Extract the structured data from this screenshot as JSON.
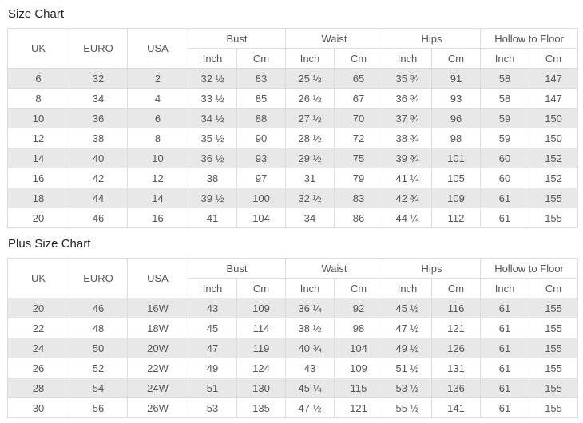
{
  "colors": {
    "background": "#ffffff",
    "shaded_row": "#e8e8e8",
    "border": "#dcdcdc",
    "cell_text": "#555555",
    "title_text": "#222222"
  },
  "tables": [
    {
      "title": "Size Chart",
      "span_headers": [
        "UK",
        "EURO",
        "USA"
      ],
      "group_headers": [
        "Bust",
        "Waist",
        "Hips",
        "Hollow to Floor"
      ],
      "sub_headers": [
        "Inch",
        "Cm"
      ],
      "rows": [
        [
          "6",
          "32",
          "2",
          "32 ½",
          "83",
          "25 ½",
          "65",
          "35 ¾",
          "91",
          "58",
          "147"
        ],
        [
          "8",
          "34",
          "4",
          "33 ½",
          "85",
          "26 ½",
          "67",
          "36 ¾",
          "93",
          "58",
          "147"
        ],
        [
          "10",
          "36",
          "6",
          "34 ½",
          "88",
          "27 ½",
          "70",
          "37 ¾",
          "96",
          "59",
          "150"
        ],
        [
          "12",
          "38",
          "8",
          "35 ½",
          "90",
          "28 ½",
          "72",
          "38 ¾",
          "98",
          "59",
          "150"
        ],
        [
          "14",
          "40",
          "10",
          "36 ½",
          "93",
          "29 ½",
          "75",
          "39 ¾",
          "101",
          "60",
          "152"
        ],
        [
          "16",
          "42",
          "12",
          "38",
          "97",
          "31",
          "79",
          "41 ¼",
          "105",
          "60",
          "152"
        ],
        [
          "18",
          "44",
          "14",
          "39 ½",
          "100",
          "32 ½",
          "83",
          "42 ¾",
          "109",
          "61",
          "155"
        ],
        [
          "20",
          "46",
          "16",
          "41",
          "104",
          "34",
          "86",
          "44 ¼",
          "112",
          "61",
          "155"
        ]
      ]
    },
    {
      "title": "Plus Size Chart",
      "span_headers": [
        "UK",
        "EURO",
        "USA"
      ],
      "group_headers": [
        "Bust",
        "Waist",
        "Hips",
        "Hollow to Floor"
      ],
      "sub_headers": [
        "Inch",
        "Cm"
      ],
      "rows": [
        [
          "20",
          "46",
          "16W",
          "43",
          "109",
          "36 ¼",
          "92",
          "45 ½",
          "116",
          "61",
          "155"
        ],
        [
          "22",
          "48",
          "18W",
          "45",
          "114",
          "38 ½",
          "98",
          "47 ½",
          "121",
          "61",
          "155"
        ],
        [
          "24",
          "50",
          "20W",
          "47",
          "119",
          "40 ¾",
          "104",
          "49 ½",
          "126",
          "61",
          "155"
        ],
        [
          "26",
          "52",
          "22W",
          "49",
          "124",
          "43",
          "109",
          "51 ½",
          "131",
          "61",
          "155"
        ],
        [
          "28",
          "54",
          "24W",
          "51",
          "130",
          "45 ¼",
          "115",
          "53 ½",
          "136",
          "61",
          "155"
        ],
        [
          "30",
          "56",
          "26W",
          "53",
          "135",
          "47 ½",
          "121",
          "55 ½",
          "141",
          "61",
          "155"
        ]
      ]
    }
  ]
}
